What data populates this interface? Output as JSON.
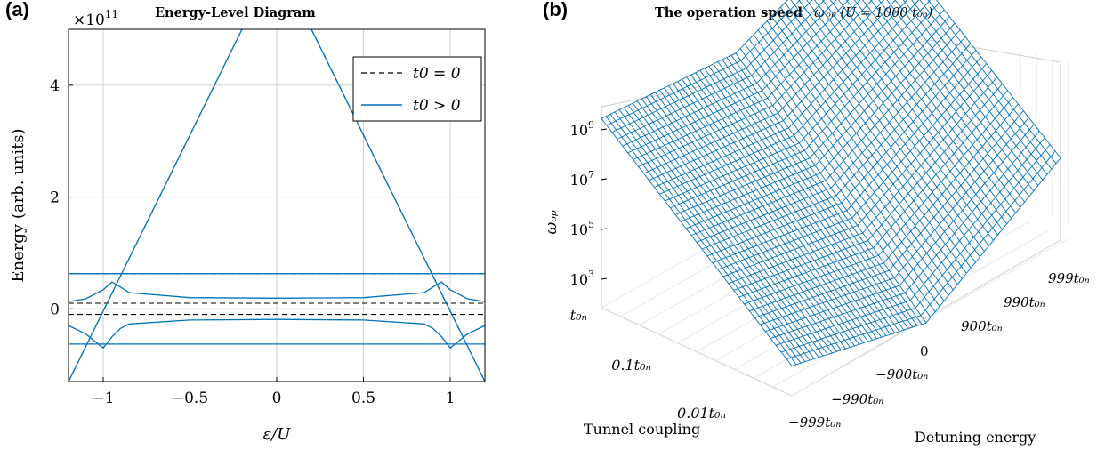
{
  "panels": {
    "a": {
      "label": "(a)",
      "title": "Energy-Level Diagram"
    },
    "b": {
      "label": "(b)",
      "title": "The operation speed",
      "title_math": "ω_op (U = 1000 t_0n)"
    }
  },
  "chart_data": [
    {
      "type": "line",
      "title": "Energy-Level Diagram",
      "xlabel": "ε/U",
      "ylabel": "Energy (arb. units)",
      "y_multiplier": "×10^11",
      "xlim": [
        -1.2,
        1.2
      ],
      "ylim": [
        -1.3,
        5.0
      ],
      "xticks": [
        -1,
        -0.5,
        0,
        0.5,
        1
      ],
      "xtick_labels": [
        "−1",
        "−0.5",
        "0",
        "0.5",
        "1"
      ],
      "yticks": [
        0,
        2,
        4
      ],
      "ytick_labels": [
        "0",
        "2",
        "4"
      ],
      "grid": true,
      "legend": "top-right",
      "series": [
        {
          "name": "t0 = 0",
          "style": "dashed",
          "color": "#000000",
          "lines": [
            {
              "x": [
                -1.2,
                -0.2
              ],
              "y": [
                -1.3,
                5.0
              ]
            },
            {
              "x": [
                0.2,
                1.2
              ],
              "y": [
                5.0,
                -1.3
              ]
            },
            {
              "x": [
                -1.2,
                1.2
              ],
              "y": [
                0.63,
                0.63
              ]
            },
            {
              "x": [
                -1.2,
                1.2
              ],
              "y": [
                0.1,
                0.1
              ]
            },
            {
              "x": [
                -1.2,
                1.2
              ],
              "y": [
                -0.1,
                -0.1
              ]
            }
          ]
        },
        {
          "name": "t0 > 0",
          "style": "solid",
          "color": "#0072bd",
          "lines": [
            {
              "x": [
                -1.2,
                -0.2
              ],
              "y": [
                -1.3,
                5.0
              ]
            },
            {
              "x": [
                0.2,
                1.2
              ],
              "y": [
                5.0,
                -1.3
              ]
            },
            {
              "x": [
                -1.2,
                1.2
              ],
              "y": [
                0.63,
                0.63
              ]
            },
            {
              "x": [
                -1.2,
                -1.1,
                -1.0,
                -0.95,
                -0.9,
                -0.85,
                -0.5,
                0,
                0.5,
                0.85,
                0.9,
                0.95,
                1.0,
                1.1,
                1.2
              ],
              "y": [
                0.13,
                0.18,
                0.34,
                0.48,
                0.39,
                0.29,
                0.2,
                0.19,
                0.2,
                0.29,
                0.39,
                0.48,
                0.34,
                0.18,
                0.13
              ]
            },
            {
              "x": [
                -1.2,
                -1.1,
                -1.0,
                -0.95,
                -0.9,
                -0.85,
                -0.5,
                0,
                0.5,
                0.85,
                0.9,
                0.95,
                1.0,
                1.1,
                1.2
              ],
              "y": [
                -0.3,
                -0.45,
                -0.7,
                -0.5,
                -0.35,
                -0.27,
                -0.2,
                -0.19,
                -0.2,
                -0.27,
                -0.35,
                -0.5,
                -0.7,
                -0.45,
                -0.3
              ]
            },
            {
              "x": [
                -1.2,
                1.2
              ],
              "y": [
                -0.63,
                -0.63
              ]
            }
          ]
        }
      ]
    },
    {
      "type": "surface",
      "title": "The operation speed",
      "zlabel": "ω_op",
      "xlabel": "Tunnel coupling",
      "ylabel": "Detuning energy",
      "zticks": [
        3,
        5,
        7,
        9
      ],
      "ztick_labels": [
        "10^3",
        "10^5",
        "10^7",
        "10^9"
      ],
      "tunnel_ticks": [
        "t_0n",
        "0.1t_0n",
        "0.01t_0n"
      ],
      "detuning_ticks": [
        "−999t_0n",
        "−990t_0n",
        "−900t_0n",
        "0",
        "900t_0n",
        "990t_0n",
        "999t_0n"
      ],
      "color": "#0072bd",
      "log10_omega_corners": {
        "t_0n,-999t_0n": 9.6,
        "t_0n,0": 9.1,
        "t_0n,999t_0n": 11.5,
        "0.01t_0n,-999t_0n": 3.2,
        "0.01t_0n,0": 1.8,
        "0.01t_0n,999t_0n": 5.3
      }
    }
  ]
}
